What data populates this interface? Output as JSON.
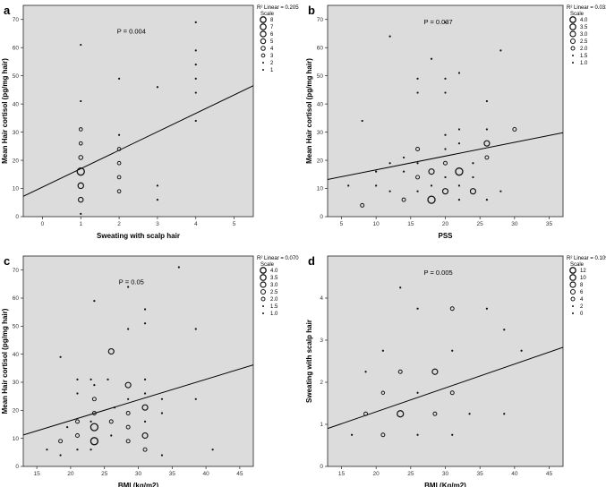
{
  "chart_data": [
    {
      "panel": "a",
      "type": "scatter",
      "xlabel": "Sweating with scalp hair",
      "ylabel": "Mean Hair cortisol (pg/mg hair)",
      "xlim": [
        -0.5,
        5.5
      ],
      "ylim": [
        0,
        75
      ],
      "xticks": [
        0,
        1,
        2,
        3,
        4,
        5
      ],
      "yticks": [
        0,
        10,
        20,
        30,
        40,
        50,
        60,
        70
      ],
      "p_value": "P = 0.004",
      "r2_label": "R² Linear = 0.205",
      "fit_line": {
        "x": [
          -0.5,
          5.5
        ],
        "y": [
          7.2,
          46.5
        ]
      },
      "legend": {
        "title": "Scale",
        "items": [
          8,
          7,
          6,
          5,
          4,
          3,
          2,
          1
        ],
        "size_min": 1,
        "size_max": 8
      },
      "points": [
        {
          "x": 1,
          "y": 61,
          "size": 1
        },
        {
          "x": 1,
          "y": 41,
          "size": 2
        },
        {
          "x": 1,
          "y": 31,
          "size": 3
        },
        {
          "x": 1,
          "y": 26,
          "size": 3
        },
        {
          "x": 1,
          "y": 21,
          "size": 4
        },
        {
          "x": 1,
          "y": 16,
          "size": 8
        },
        {
          "x": 1,
          "y": 11,
          "size": 6
        },
        {
          "x": 1,
          "y": 6,
          "size": 5
        },
        {
          "x": 1,
          "y": 1,
          "size": 1
        },
        {
          "x": 2,
          "y": 49,
          "size": 1
        },
        {
          "x": 2,
          "y": 29,
          "size": 2
        },
        {
          "x": 2,
          "y": 24,
          "size": 3
        },
        {
          "x": 2,
          "y": 19,
          "size": 3
        },
        {
          "x": 2,
          "y": 14,
          "size": 3
        },
        {
          "x": 2,
          "y": 9,
          "size": 3
        },
        {
          "x": 3,
          "y": 46,
          "size": 1
        },
        {
          "x": 3,
          "y": 11,
          "size": 2
        },
        {
          "x": 3,
          "y": 6,
          "size": 2
        },
        {
          "x": 4,
          "y": 69,
          "size": 1
        },
        {
          "x": 4,
          "y": 59,
          "size": 1
        },
        {
          "x": 4,
          "y": 54,
          "size": 1
        },
        {
          "x": 4,
          "y": 49,
          "size": 1
        },
        {
          "x": 4,
          "y": 44,
          "size": 1
        },
        {
          "x": 4,
          "y": 34,
          "size": 1
        }
      ]
    },
    {
      "panel": "b",
      "type": "scatter",
      "xlabel": "PSS",
      "ylabel": "Mean Hair cortisol (pg/mg hair)",
      "xlim": [
        3,
        37
      ],
      "ylim": [
        0,
        75
      ],
      "xticks": [
        5,
        10,
        15,
        20,
        25,
        30,
        35
      ],
      "yticks": [
        0,
        10,
        20,
        30,
        40,
        50,
        60,
        70
      ],
      "p_value": "P = 0.037",
      "r2_label": "R² Linear = 0.033",
      "fit_line": {
        "x": [
          3,
          37
        ],
        "y": [
          13.2,
          29.8
        ]
      },
      "legend": {
        "title": "Scale",
        "items": [
          "4.0",
          "3.5",
          "3.0",
          "2.5",
          "2.0",
          "1.5",
          "1.0"
        ],
        "size_min": 1,
        "size_max": 4
      },
      "points": [
        {
          "x": 8,
          "y": 34,
          "size": 1
        },
        {
          "x": 8,
          "y": 4,
          "size": 2
        },
        {
          "x": 10,
          "y": 16,
          "size": 1
        },
        {
          "x": 10,
          "y": 11,
          "size": 1
        },
        {
          "x": 12,
          "y": 64,
          "size": 1
        },
        {
          "x": 12,
          "y": 19,
          "size": 1
        },
        {
          "x": 12,
          "y": 9,
          "size": 1
        },
        {
          "x": 14,
          "y": 21,
          "size": 1
        },
        {
          "x": 14,
          "y": 16,
          "size": 1
        },
        {
          "x": 14,
          "y": 6,
          "size": 2
        },
        {
          "x": 16,
          "y": 49,
          "size": 1
        },
        {
          "x": 16,
          "y": 44,
          "size": 1
        },
        {
          "x": 16,
          "y": 24,
          "size": 2
        },
        {
          "x": 16,
          "y": 19,
          "size": 1
        },
        {
          "x": 16,
          "y": 14,
          "size": 2
        },
        {
          "x": 16,
          "y": 9,
          "size": 1
        },
        {
          "x": 18,
          "y": 56,
          "size": 1
        },
        {
          "x": 18,
          "y": 16,
          "size": 3
        },
        {
          "x": 18,
          "y": 11,
          "size": 1
        },
        {
          "x": 18,
          "y": 6,
          "size": 4
        },
        {
          "x": 20,
          "y": 69,
          "size": 1
        },
        {
          "x": 20,
          "y": 49,
          "size": 1
        },
        {
          "x": 20,
          "y": 44,
          "size": 1
        },
        {
          "x": 20,
          "y": 29,
          "size": 1
        },
        {
          "x": 20,
          "y": 24,
          "size": 1
        },
        {
          "x": 20,
          "y": 19,
          "size": 2
        },
        {
          "x": 20,
          "y": 14,
          "size": 1
        },
        {
          "x": 20,
          "y": 9,
          "size": 3
        },
        {
          "x": 22,
          "y": 51,
          "size": 1
        },
        {
          "x": 22,
          "y": 31,
          "size": 1
        },
        {
          "x": 22,
          "y": 26,
          "size": 1
        },
        {
          "x": 22,
          "y": 16,
          "size": 4
        },
        {
          "x": 22,
          "y": 11,
          "size": 1
        },
        {
          "x": 22,
          "y": 6,
          "size": 1
        },
        {
          "x": 24,
          "y": 19,
          "size": 1
        },
        {
          "x": 24,
          "y": 14,
          "size": 1
        },
        {
          "x": 24,
          "y": 9,
          "size": 3
        },
        {
          "x": 26,
          "y": 41,
          "size": 1
        },
        {
          "x": 26,
          "y": 31,
          "size": 1
        },
        {
          "x": 26,
          "y": 26,
          "size": 3
        },
        {
          "x": 26,
          "y": 21,
          "size": 2
        },
        {
          "x": 26,
          "y": 6,
          "size": 1
        },
        {
          "x": 28,
          "y": 59,
          "size": 1
        },
        {
          "x": 28,
          "y": 9,
          "size": 1
        },
        {
          "x": 30,
          "y": 31,
          "size": 2
        },
        {
          "x": 6,
          "y": 11,
          "size": 1
        }
      ]
    },
    {
      "panel": "c",
      "type": "scatter",
      "xlabel": "BMI (kg/m2)",
      "ylabel": "Mean Hair cortisol (pg/mg hair)",
      "xlim": [
        13,
        47
      ],
      "ylim": [
        0,
        75
      ],
      "xticks": [
        15,
        20,
        25,
        30,
        35,
        40,
        45
      ],
      "yticks": [
        0,
        10,
        20,
        30,
        40,
        50,
        60,
        70
      ],
      "p_value": "P = 0.05",
      "r2_label": "R² Linear = 0.070",
      "fit_line": {
        "x": [
          13,
          47
        ],
        "y": [
          11.2,
          36.2
        ]
      },
      "legend": {
        "title": "Scale",
        "items": [
          "4.0",
          "3.5",
          "3.0",
          "2.5",
          "2.0",
          "1.5",
          "1.0"
        ],
        "size_min": 1,
        "size_max": 4
      },
      "points": [
        {
          "x": 16.5,
          "y": 6,
          "size": 1
        },
        {
          "x": 18.5,
          "y": 39,
          "size": 1
        },
        {
          "x": 18.5,
          "y": 9,
          "size": 2
        },
        {
          "x": 18.5,
          "y": 4,
          "size": 1
        },
        {
          "x": 19.5,
          "y": 14,
          "size": 1
        },
        {
          "x": 21,
          "y": 31,
          "size": 1
        },
        {
          "x": 21,
          "y": 26,
          "size": 1
        },
        {
          "x": 21,
          "y": 16,
          "size": 2
        },
        {
          "x": 21,
          "y": 11,
          "size": 2
        },
        {
          "x": 21,
          "y": 6,
          "size": 1
        },
        {
          "x": 23,
          "y": 31,
          "size": 1
        },
        {
          "x": 23,
          "y": 16,
          "size": 1
        },
        {
          "x": 23,
          "y": 6,
          "size": 1
        },
        {
          "x": 23.5,
          "y": 59,
          "size": 1
        },
        {
          "x": 23.5,
          "y": 29,
          "size": 1
        },
        {
          "x": 23.5,
          "y": 24,
          "size": 2
        },
        {
          "x": 23.5,
          "y": 19,
          "size": 2
        },
        {
          "x": 23.5,
          "y": 14,
          "size": 4
        },
        {
          "x": 23.5,
          "y": 9,
          "size": 4
        },
        {
          "x": 25.5,
          "y": 31,
          "size": 1
        },
        {
          "x": 26,
          "y": 41,
          "size": 3
        },
        {
          "x": 26,
          "y": 16,
          "size": 2
        },
        {
          "x": 26,
          "y": 11,
          "size": 1
        },
        {
          "x": 26.5,
          "y": 21,
          "size": 1
        },
        {
          "x": 28.5,
          "y": 64,
          "size": 1
        },
        {
          "x": 28.5,
          "y": 49,
          "size": 1
        },
        {
          "x": 28.5,
          "y": 29,
          "size": 3
        },
        {
          "x": 28.5,
          "y": 24,
          "size": 1
        },
        {
          "x": 28.5,
          "y": 19,
          "size": 2
        },
        {
          "x": 28.5,
          "y": 14,
          "size": 2
        },
        {
          "x": 28.5,
          "y": 9,
          "size": 2
        },
        {
          "x": 31,
          "y": 56,
          "size": 1
        },
        {
          "x": 31,
          "y": 51,
          "size": 1
        },
        {
          "x": 31,
          "y": 31,
          "size": 1
        },
        {
          "x": 31,
          "y": 26,
          "size": 1
        },
        {
          "x": 31,
          "y": 21,
          "size": 3
        },
        {
          "x": 31,
          "y": 16,
          "size": 1
        },
        {
          "x": 31,
          "y": 11,
          "size": 3
        },
        {
          "x": 31,
          "y": 6,
          "size": 2
        },
        {
          "x": 33.5,
          "y": 24,
          "size": 1
        },
        {
          "x": 33.5,
          "y": 19,
          "size": 1
        },
        {
          "x": 36,
          "y": 71,
          "size": 1
        },
        {
          "x": 38.5,
          "y": 49,
          "size": 1
        },
        {
          "x": 38.5,
          "y": 24,
          "size": 1
        },
        {
          "x": 41,
          "y": 6,
          "size": 1
        },
        {
          "x": 33.5,
          "y": 4,
          "size": 1
        }
      ]
    },
    {
      "panel": "d",
      "type": "scatter",
      "xlabel": "BMI (Kg/m2)",
      "ylabel": "Sweating with scalp hair",
      "xlim": [
        13,
        47
      ],
      "ylim": [
        0,
        5
      ],
      "xticks": [
        15,
        20,
        25,
        30,
        35,
        40,
        45
      ],
      "yticks": [
        0,
        1,
        2,
        3,
        4
      ],
      "p_value": "P = 0.005",
      "r2_label": "R² Linear = 0.109",
      "fit_line": {
        "x": [
          13,
          47
        ],
        "y": [
          0.9,
          2.83
        ]
      },
      "legend": {
        "title": "Scale",
        "items": [
          12,
          10,
          8,
          6,
          4,
          2,
          0
        ],
        "size_min": 0,
        "size_max": 12
      },
      "points": [
        {
          "x": 16.5,
          "y": 0.75,
          "size": 1
        },
        {
          "x": 18.5,
          "y": 2.25,
          "size": 2
        },
        {
          "x": 18.5,
          "y": 1.25,
          "size": 4
        },
        {
          "x": 21,
          "y": 2.75,
          "size": 2
        },
        {
          "x": 21,
          "y": 1.75,
          "size": 3
        },
        {
          "x": 21,
          "y": 0.75,
          "size": 4
        },
        {
          "x": 23.5,
          "y": 4.25,
          "size": 1
        },
        {
          "x": 23.5,
          "y": 2.25,
          "size": 4
        },
        {
          "x": 23.5,
          "y": 1.25,
          "size": 10
        },
        {
          "x": 26,
          "y": 3.75,
          "size": 2
        },
        {
          "x": 26,
          "y": 1.75,
          "size": 1
        },
        {
          "x": 26,
          "y": 0.75,
          "size": 2
        },
        {
          "x": 28.5,
          "y": 2.25,
          "size": 8
        },
        {
          "x": 28.5,
          "y": 1.25,
          "size": 4
        },
        {
          "x": 31,
          "y": 3.75,
          "size": 4
        },
        {
          "x": 31,
          "y": 2.75,
          "size": 1
        },
        {
          "x": 31,
          "y": 1.75,
          "size": 4
        },
        {
          "x": 31,
          "y": 0.75,
          "size": 2
        },
        {
          "x": 33.5,
          "y": 1.25,
          "size": 2
        },
        {
          "x": 36,
          "y": 3.75,
          "size": 1
        },
        {
          "x": 38.5,
          "y": 3.25,
          "size": 2
        },
        {
          "x": 38.5,
          "y": 1.25,
          "size": 1
        },
        {
          "x": 41,
          "y": 2.75,
          "size": 1
        }
      ]
    }
  ]
}
